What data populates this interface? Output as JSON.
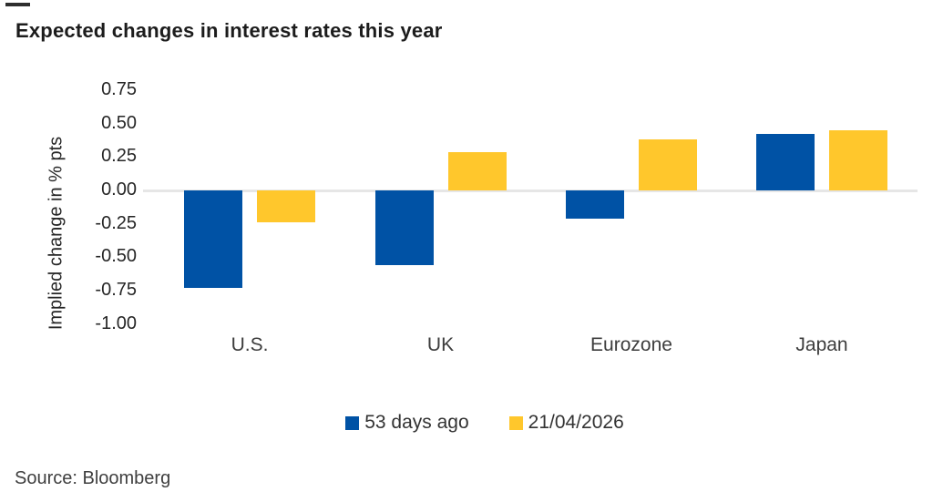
{
  "page": {
    "title": "Expected changes in interest rates this year",
    "source": "Source: Bloomberg"
  },
  "chart_data": {
    "type": "bar",
    "title": "Expected changes in interest rates this year",
    "xlabel": "",
    "ylabel": "Implied change in % pts",
    "categories": [
      "U.S.",
      "UK",
      "Eurozone",
      "Japan"
    ],
    "series": [
      {
        "name": "53 days ago",
        "color": "#0052a5",
        "values": [
          -0.73,
          -0.56,
          -0.21,
          0.42
        ]
      },
      {
        "name": "21/04/2026",
        "color": "#ffc72c",
        "values": [
          -0.24,
          0.29,
          0.38,
          0.45
        ]
      }
    ],
    "yticks": [
      0.75,
      0.5,
      0.25,
      0.0,
      -0.25,
      -0.5,
      -0.75,
      -1.0
    ],
    "ytick_labels": [
      "0.75",
      "0.50",
      "0.25",
      "0.00",
      "-0.25",
      "-0.50",
      "-0.75",
      "-1.00"
    ],
    "ylim": [
      -1.0,
      0.75
    ],
    "grid": "zero-line-only",
    "zero_line_color": "#e6e6e6",
    "legend_position": "bottom-center",
    "source": "Source: Bloomberg"
  }
}
